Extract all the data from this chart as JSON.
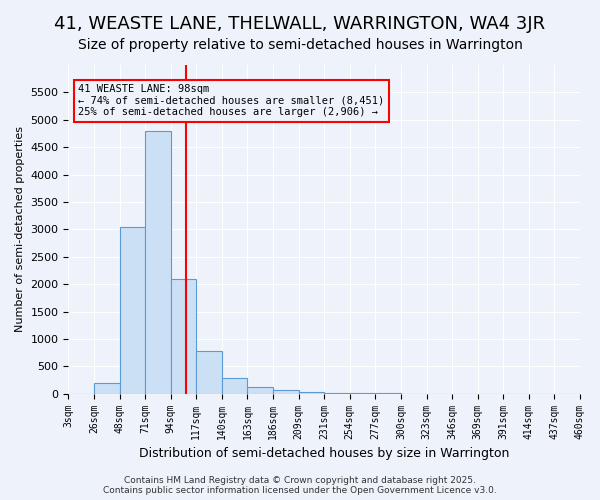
{
  "title": "41, WEASTE LANE, THELWALL, WARRINGTON, WA4 3JR",
  "subtitle": "Size of property relative to semi-detached houses in Warrington",
  "xlabel": "Distribution of semi-detached houses by size in Warrington",
  "ylabel": "Number of semi-detached properties",
  "bin_labels": [
    "3sqm",
    "26sqm",
    "48sqm",
    "71sqm",
    "94sqm",
    "117sqm",
    "140sqm",
    "163sqm",
    "186sqm",
    "209sqm",
    "231sqm",
    "254sqm",
    "277sqm",
    "300sqm",
    "323sqm",
    "346sqm",
    "369sqm",
    "391sqm",
    "414sqm",
    "437sqm",
    "460sqm"
  ],
  "bar_heights": [
    0,
    200,
    3050,
    4800,
    2100,
    780,
    280,
    120,
    60,
    30,
    15,
    8,
    5,
    3,
    2,
    1,
    1,
    0,
    0,
    0
  ],
  "bar_color": "#cce0f5",
  "bar_edge_color": "#5b9bd5",
  "red_line_x": 4.6,
  "annotation_text": "41 WEASTE LANE: 98sqm\n← 74% of semi-detached houses are smaller (8,451)\n25% of semi-detached houses are larger (2,906) →",
  "ylim": [
    0,
    6000
  ],
  "yticks": [
    0,
    500,
    1000,
    1500,
    2000,
    2500,
    3000,
    3500,
    4000,
    4500,
    5000,
    5500
  ],
  "background_color": "#eef3fb",
  "grid_color": "#ffffff",
  "footer_text": "Contains HM Land Registry data © Crown copyright and database right 2025.\nContains public sector information licensed under the Open Government Licence v3.0.",
  "title_fontsize": 13,
  "subtitle_fontsize": 10,
  "ylabel_fontsize": 8,
  "xlabel_fontsize": 9,
  "tick_fontsize": 7,
  "annotation_fontsize": 7.5,
  "footer_fontsize": 6.5
}
